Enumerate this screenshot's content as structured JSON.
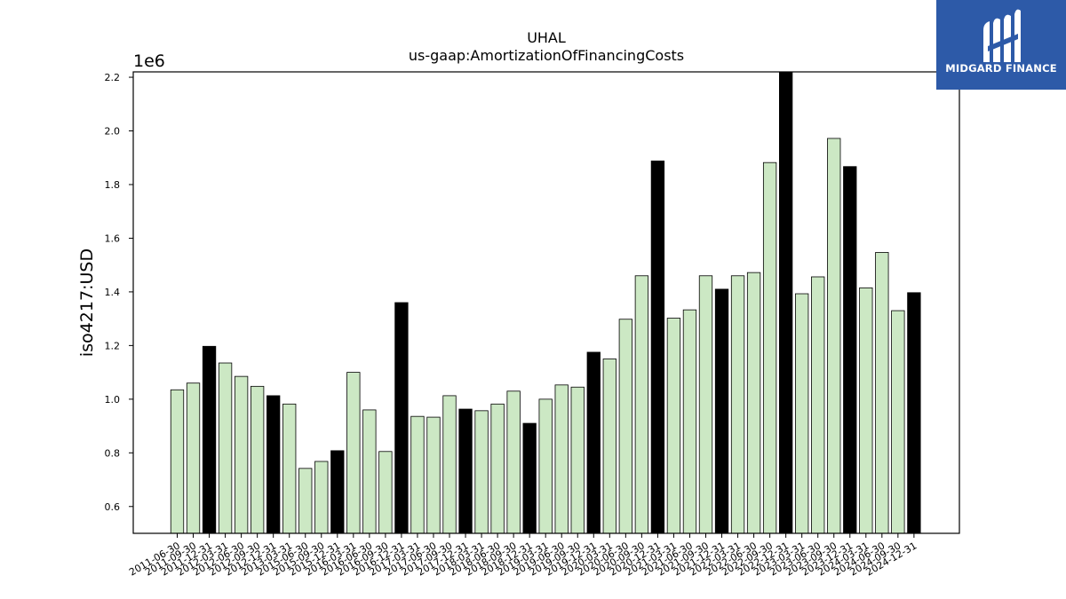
{
  "brand": {
    "name": "MIDGARD FINANCE",
    "bg_color": "#2d5aa8"
  },
  "chart_data": {
    "type": "bar",
    "title": "UHAL",
    "subtitle": "us-gaap:AmortizationOfFinancingCosts",
    "ylabel": "iso4217:USD",
    "xlabel": "",
    "y_multiplier_label": "1e6",
    "ylim": [
      500000,
      2220000
    ],
    "yticks": [
      0.6,
      0.8,
      1.0,
      1.2,
      1.4,
      1.6,
      1.8,
      2.0,
      2.2
    ],
    "ytick_labels": [
      "0.6",
      "0.8",
      "1.0",
      "1.2",
      "1.4",
      "1.6",
      "1.8",
      "2.0",
      "2.2"
    ],
    "colors": {
      "quarter": "#cce8c4",
      "year_end": "#000000",
      "edge": "#000000"
    },
    "categories": [
      "2011-06-30",
      "2011-09-30",
      "2011-12-31",
      "2012-03-31",
      "2012-06-30",
      "2012-09-30",
      "2012-12-31",
      "2013-03-31",
      "2015-06-30",
      "2015-09-30",
      "2015-12-31",
      "2016-03-31",
      "2016-06-30",
      "2016-09-30",
      "2016-12-31",
      "2017-03-31",
      "2017-06-30",
      "2017-09-30",
      "2017-12-31",
      "2018-03-31",
      "2018-06-30",
      "2018-09-30",
      "2018-12-31",
      "2019-03-31",
      "2019-06-30",
      "2019-09-30",
      "2019-12-31",
      "2020-03-31",
      "2020-06-30",
      "2020-09-30",
      "2020-12-31",
      "2021-03-31",
      "2021-06-30",
      "2021-09-30",
      "2021-12-31",
      "2022-03-31",
      "2022-06-30",
      "2022-09-30",
      "2022-12-31",
      "2023-03-31",
      "2023-06-30",
      "2023-09-30",
      "2023-12-31",
      "2024-03-31",
      "2024-06-30",
      "2024-09-30",
      "2024-12-31"
    ],
    "values": [
      1035000,
      1060000,
      1197000,
      1135000,
      1085000,
      1048000,
      1013000,
      982000,
      742000,
      768000,
      808000,
      1100000,
      960000,
      805000,
      1360000,
      936000,
      933000,
      1013000,
      963000,
      957000,
      982000,
      1030000,
      910000,
      1000000,
      1053000,
      1045000,
      1175000,
      1150000,
      1298000,
      1460000,
      1888000,
      1302000,
      1333000,
      1460000,
      1410000,
      1460000,
      1472000,
      1882000,
      2220000,
      1393000,
      1456000,
      1972000,
      1867000,
      1415000,
      1547000,
      1330000,
      1397000
    ],
    "highlight": [
      false,
      false,
      true,
      false,
      false,
      false,
      true,
      false,
      false,
      false,
      true,
      false,
      false,
      false,
      true,
      false,
      false,
      false,
      true,
      false,
      false,
      false,
      true,
      false,
      false,
      false,
      true,
      false,
      false,
      false,
      true,
      false,
      false,
      false,
      true,
      false,
      false,
      false,
      true,
      false,
      false,
      false,
      true,
      false,
      false,
      false,
      true
    ],
    "grid": false,
    "legend": "none"
  }
}
